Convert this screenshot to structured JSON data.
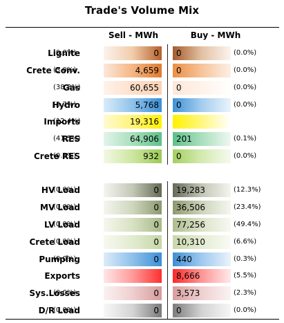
{
  "title": "Trade's Volume Mix",
  "headers": {
    "sell": "Sell - MWh",
    "buy": "Buy - MWh"
  },
  "rows": [
    {
      "label": "Lignite",
      "sell_pct": "(0.0%)",
      "sell": "0",
      "buy": "0",
      "buy_pct": "(0.0%)",
      "sell_bg": "linear-gradient(to right,#fbf3ec,#f1ccaa,#b7612b)",
      "buy_bg": "linear-gradient(to right,#a35d2c,#e4c1a4,#fbf4ee)"
    },
    {
      "label": "Crete Conv.",
      "sell_pct": "(3.0%)",
      "sell": "4,659",
      "buy": "0",
      "buy_pct": "(0.0%)",
      "sell_bg": "linear-gradient(to right,#fbe8d9,#f5b683,#e07b2f)",
      "buy_bg": "linear-gradient(to right,#ec8f44,#f6c49a,#fdf0e6)"
    },
    {
      "label": "Gas",
      "sell_pct": "(38.8%)",
      "sell": "60,655",
      "buy": "0",
      "buy_pct": "(0.0%)",
      "sell_bg": "linear-gradient(to right,#fff3ea,#fde0cc,#fbd2b6)",
      "buy_bg": "linear-gradient(to right,#fde7d8,#fff2ea,#ffffff)"
    },
    {
      "label": "Hydro",
      "sell_pct": "(3.7%)",
      "sell": "5,768",
      "buy": "0",
      "buy_pct": "(0.0%)",
      "sell_bg": "linear-gradient(to right,#d9ebf8,#8fc2ea,#3b8fd6)",
      "buy_bg": "linear-gradient(to right,#3f93d7,#a5cdee,#eaf4fb)"
    },
    {
      "label": "Imports",
      "sell_pct": "(12.4%)",
      "sell": "19,316",
      "buy": "",
      "buy_pct": "",
      "sell_bg": "linear-gradient(to right,#fffbd0,#fff37a,#fff200)",
      "buy_bg": "linear-gradient(to right,#fff200,#fff77f,#ffffff)"
    },
    {
      "label": "RES",
      "sell_pct": "(41.5%)",
      "sell": "64,906",
      "buy": "201",
      "buy_pct": "(0.1%)",
      "sell_bg": "linear-gradient(to right,#e2f4ea,#a8dfbc,#5ec08a)",
      "buy_bg": "linear-gradient(to right,#5ec08a,#a9dfbd,#eef8f2)"
    },
    {
      "label": "Crete RES",
      "sell_pct": "(0.6%)",
      "sell": "932",
      "buy": "0",
      "buy_pct": "(0.0%)",
      "sell_bg": "linear-gradient(to right,#f1f8e4,#cde6a0,#9ccb55)",
      "buy_bg": "linear-gradient(to right,#a3cf60,#d4eab0,#f5faee)"
    },
    {
      "label": "HV Load",
      "sell_pct": "(0.0%)",
      "sell": "0",
      "buy": "19,283",
      "buy_pct": "(12.3%)",
      "sell_bg": "linear-gradient(to right,#f5f5f0,#c3c7b6,#646a55)",
      "buy_bg": "linear-gradient(to right,#666b58,#c2c6b5,#f5f5f1)"
    },
    {
      "label": "MV Load",
      "sell_pct": "(0.0%)",
      "sell": "0",
      "buy": "36,506",
      "buy_pct": "(23.4%)",
      "sell_bg": "linear-gradient(to right,#f4f6ef,#cfd6bd,#8c9870)",
      "buy_bg": "linear-gradient(to right,#8d996f,#cdd4bb,#f5f6f0)"
    },
    {
      "label": "LV Load",
      "sell_pct": "(0.0%)",
      "sell": "0",
      "buy": "77,256",
      "buy_pct": "(49.4%)",
      "sell_bg": "linear-gradient(to right,#f5f7ee,#d8e1c2,#a9b98a)",
      "buy_bg": "linear-gradient(to right,#aebd90,#dbe3c8,#f7f9f2)"
    },
    {
      "label": "Crete Load",
      "sell_pct": "(0.0%)",
      "sell": "0",
      "buy": "10,310",
      "buy_pct": "(6.6%)",
      "sell_bg": "linear-gradient(to right,#f7f9f0,#e2ebd0,#c6d6a8)",
      "buy_bg": "linear-gradient(to right,#c8d8ab,#e3ecd3,#f9fbf5)"
    },
    {
      "label": "Pumping",
      "sell_pct": "(0.0%)",
      "sell": "0",
      "buy": "440",
      "buy_pct": "(0.3%)",
      "sell_bg": "linear-gradient(to right,#dcecf8,#8ec0ea,#3d8fd6)",
      "buy_bg": "linear-gradient(to right,#3d8fd6,#9fcaee,#eaf3fb)"
    },
    {
      "label": "Exports",
      "sell_pct": "",
      "sell": "",
      "buy": "8,666",
      "buy_pct": "(5.5%)",
      "sell_bg": "linear-gradient(to right,#ffe6e6,#ff9a9a,#ff3030)",
      "buy_bg": "linear-gradient(to right,#ff2828,#ff9595,#ffeaea)"
    },
    {
      "label": "Sys.Losses",
      "sell_pct": "(0.0%)",
      "sell": "0",
      "buy": "3,573",
      "buy_pct": "(2.3%)",
      "sell_bg": "linear-gradient(to right,#fbf1f1,#efcece,#d69c9c)",
      "buy_bg": "linear-gradient(to right,#d89f9f,#efd0d0,#fbf3f3)"
    },
    {
      "label": "D/R Load",
      "sell_pct": "(0.0%)",
      "sell": "0",
      "buy": "0",
      "buy_pct": "(0.0%)",
      "sell_bg": "linear-gradient(to right,#f7f7f7,#d4d4d4,#7a7a7a)",
      "buy_bg": "linear-gradient(to right,#7c7c7c,#d3d3d3,#f7f7f7)"
    }
  ]
}
